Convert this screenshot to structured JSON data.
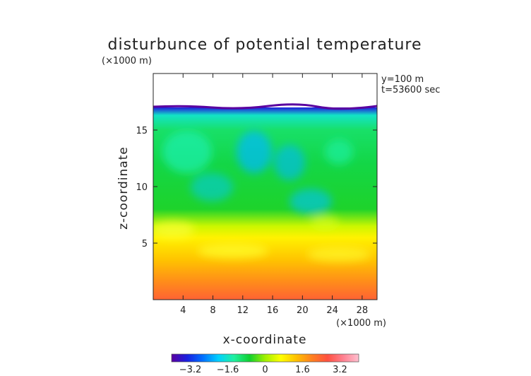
{
  "chart_data": {
    "type": "heatmap",
    "title": "disturbunce of potential temperature",
    "y_unit_label": "(×1000 m)",
    "x_unit_label": "(×1000 m)",
    "annotations": [
      "y=100 m",
      "t=53600 sec"
    ],
    "xlabel": "x-coordinate",
    "ylabel": "z-coordinate",
    "xlim": [
      0,
      30
    ],
    "ylim": [
      0,
      20
    ],
    "x_ticks": [
      4,
      8,
      12,
      16,
      20,
      24,
      28
    ],
    "y_ticks": [
      5,
      10,
      15
    ],
    "colorbar": {
      "ticks": [
        -3.2,
        -1.6,
        0,
        1.6,
        3.2
      ],
      "tick_labels": [
        "−3.2",
        "−1.6",
        "0",
        "1.6",
        "3.2"
      ],
      "range": [
        -4.0,
        4.0
      ],
      "colors": [
        "#5a00a0",
        "#1a20e0",
        "#0070ff",
        "#00d0ff",
        "#20f0a0",
        "#10d030",
        "#a0f000",
        "#ffff00",
        "#ffc000",
        "#ff8020",
        "#ff5040",
        "#ff8090",
        "#ffc0d0"
      ]
    },
    "field_profile": [
      {
        "z": 0.0,
        "value": 2.4
      },
      {
        "z": 1.5,
        "value": 1.9
      },
      {
        "z": 3.5,
        "value": 1.3
      },
      {
        "z": 5.5,
        "value": 0.8
      },
      {
        "z": 6.5,
        "value": 0.3
      },
      {
        "z": 8.0,
        "value": -0.6
      },
      {
        "z": 12.0,
        "value": -0.8
      },
      {
        "z": 15.0,
        "value": -1.0
      },
      {
        "z": 16.3,
        "value": -1.6
      },
      {
        "z": 17.0,
        "value": -3.4
      }
    ],
    "top_boundary_z": 17.0
  }
}
